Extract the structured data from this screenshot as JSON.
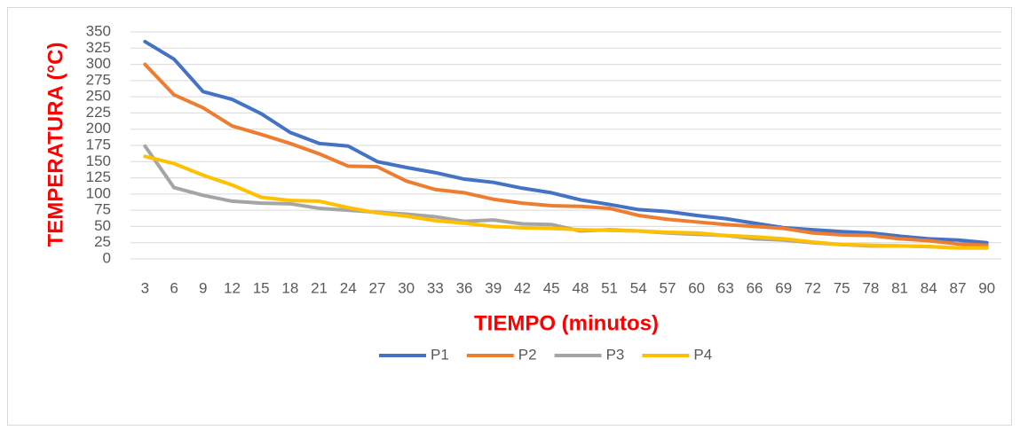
{
  "chart_data": {
    "type": "line",
    "xlabel": "TIEMPO (minutos)",
    "ylabel": "TEMPERATURA (°C)",
    "categories": [
      3,
      6,
      9,
      12,
      15,
      18,
      21,
      24,
      27,
      30,
      33,
      36,
      39,
      42,
      45,
      48,
      51,
      54,
      57,
      60,
      63,
      66,
      69,
      72,
      75,
      78,
      81,
      84,
      87,
      90
    ],
    "series": [
      {
        "name": "P1",
        "color": "#4472c4",
        "values": [
          335,
          308,
          258,
          246,
          224,
          195,
          178,
          174,
          150,
          141,
          133,
          123,
          118,
          109,
          102,
          91,
          84,
          76,
          73,
          67,
          62,
          55,
          48,
          45,
          42,
          40,
          35,
          31,
          29,
          25
        ]
      },
      {
        "name": "P2",
        "color": "#ed7d31",
        "values": [
          300,
          253,
          233,
          205,
          192,
          178,
          162,
          143,
          142,
          120,
          107,
          102,
          92,
          86,
          82,
          81,
          78,
          67,
          61,
          57,
          53,
          50,
          47,
          40,
          37,
          36,
          31,
          28,
          23,
          21
        ]
      },
      {
        "name": "P3",
        "color": "#a5a5a5",
        "values": [
          174,
          110,
          98,
          89,
          86,
          85,
          78,
          75,
          72,
          69,
          65,
          58,
          60,
          54,
          53,
          43,
          45,
          43,
          40,
          38,
          36,
          31,
          29,
          25,
          22,
          20,
          20,
          19,
          17,
          17
        ]
      },
      {
        "name": "P4",
        "color": "#ffc000",
        "values": [
          158,
          147,
          129,
          114,
          95,
          90,
          89,
          79,
          71,
          66,
          59,
          55,
          50,
          48,
          47,
          45,
          44,
          43,
          41,
          40,
          36,
          34,
          31,
          26,
          22,
          21,
          20,
          19,
          17,
          17
        ]
      }
    ],
    "ylim": [
      0,
      350
    ],
    "yticks": [
      0,
      25,
      50,
      75,
      100,
      125,
      150,
      175,
      200,
      225,
      250,
      275,
      300,
      325,
      350
    ],
    "grid": true,
    "legend": "bottom"
  }
}
